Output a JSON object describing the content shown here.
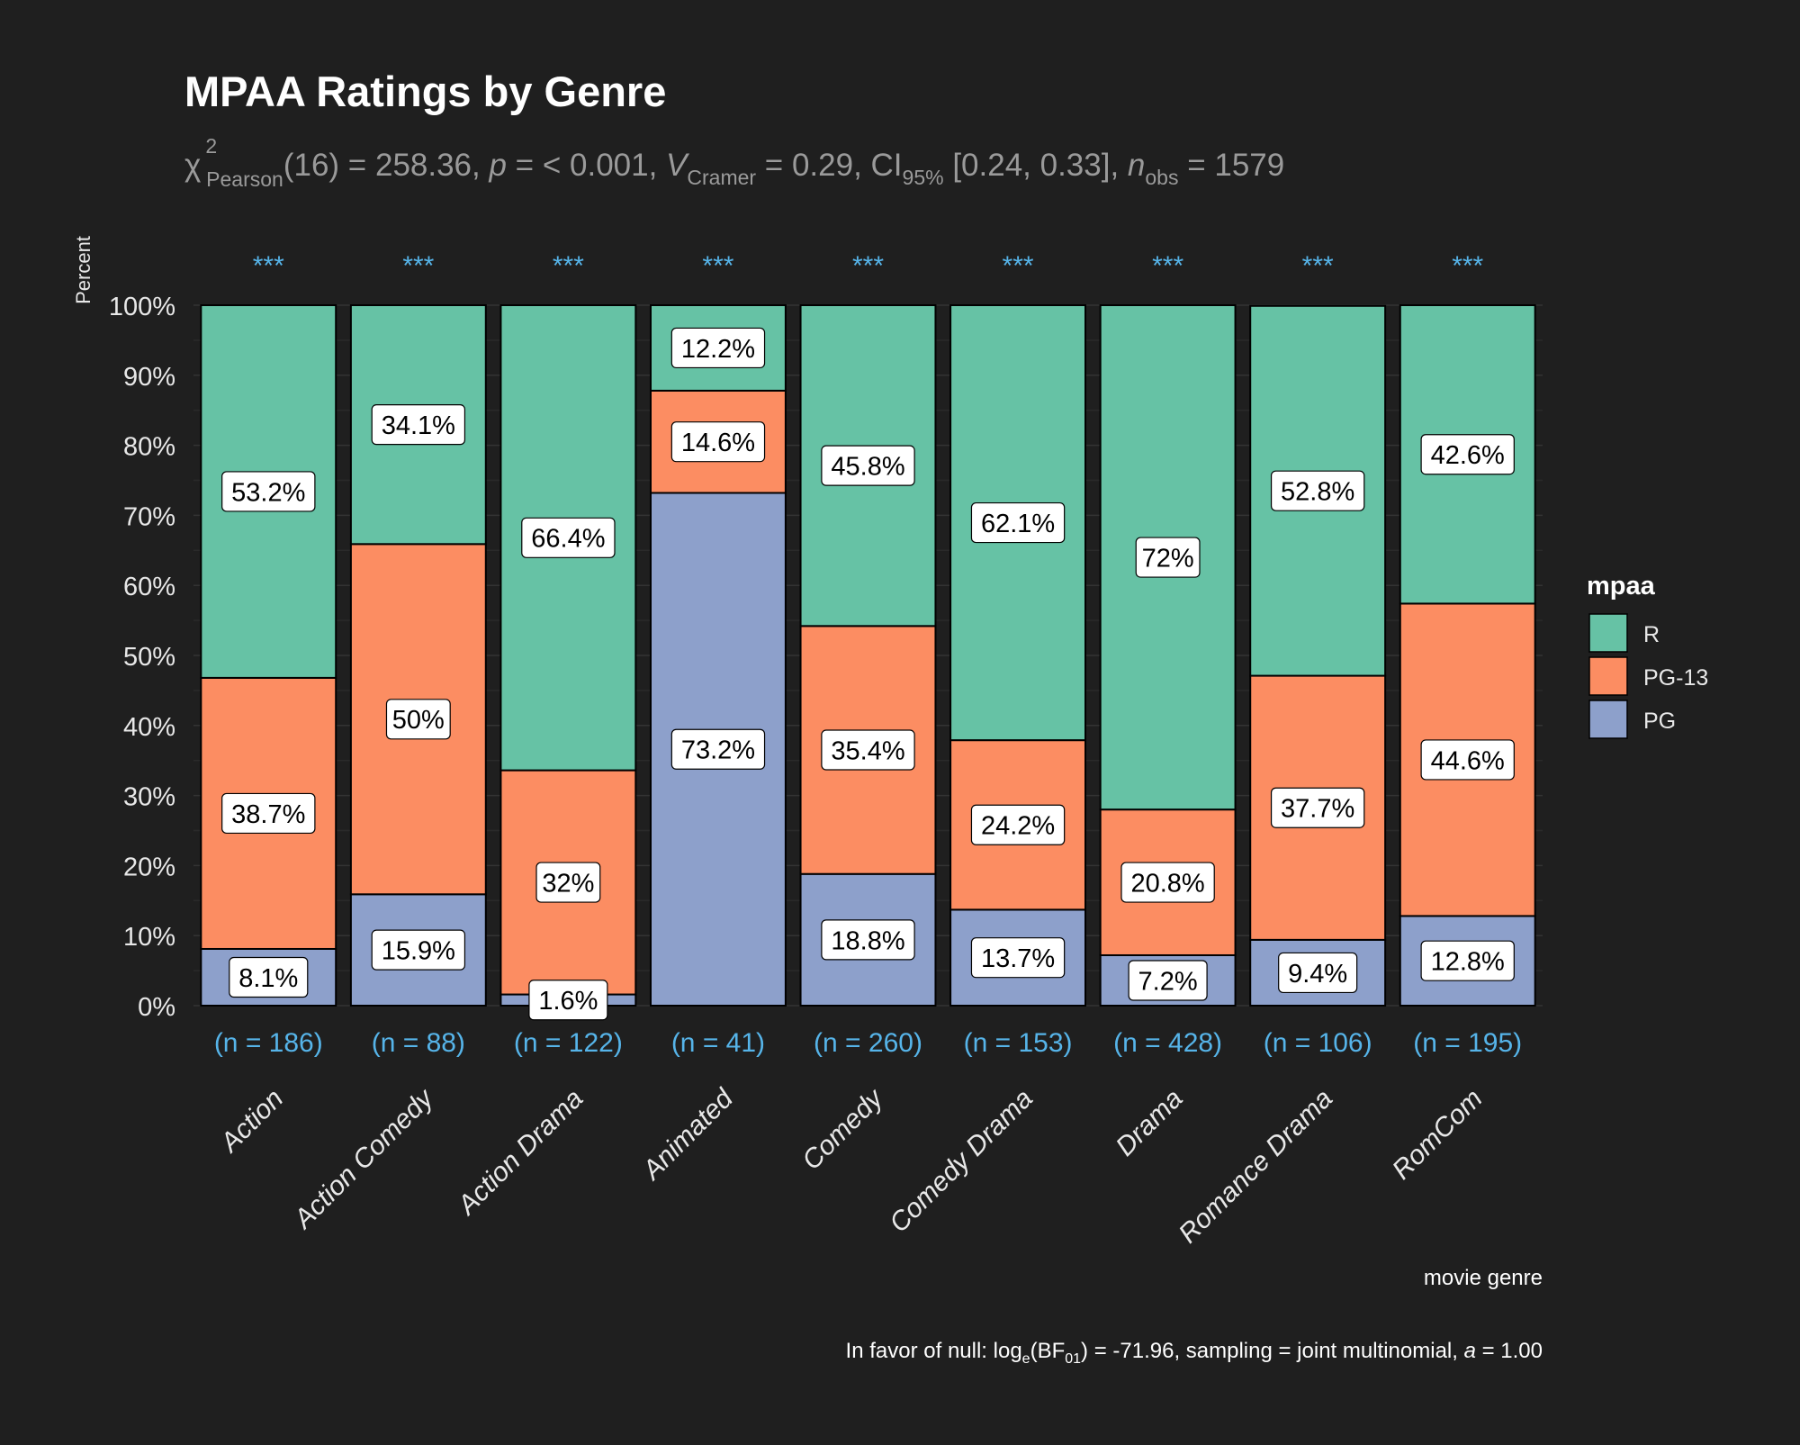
{
  "chart_data": {
    "type": "bar",
    "stacked": "percent",
    "title": "MPAA Ratings by Genre",
    "subtitle": {
      "chi": "χ",
      "chi_sup": "2",
      "chi_sub": "Pearson",
      "part1": "(16) = 258.36, ",
      "p_symbol": "p",
      "part2": " = < 0.001, ",
      "v_symbol": "V",
      "v_sub": "Cramer",
      "part3": " = 0.29, CI",
      "ci_sub": "95%",
      "part4": " [0.24, 0.33], ",
      "n_symbol": "n",
      "n_sub": "obs",
      "part5": " = 1579"
    },
    "xlabel": "movie genre",
    "ylabel": "Percent",
    "ylim": [
      0,
      100
    ],
    "y_ticks": [
      "0%",
      "10%",
      "20%",
      "30%",
      "40%",
      "50%",
      "60%",
      "70%",
      "80%",
      "90%",
      "100%"
    ],
    "categories": [
      "Action",
      "Action Comedy",
      "Action Drama",
      "Animated",
      "Comedy",
      "Comedy Drama",
      "Drama",
      "Romance Drama",
      "RomCom"
    ],
    "counts": [
      "(n = 186)",
      "(n = 88)",
      "(n = 122)",
      "(n = 41)",
      "(n = 260)",
      "(n = 153)",
      "(n = 428)",
      "(n = 106)",
      "(n = 195)"
    ],
    "significance": [
      "***",
      "***",
      "***",
      "***",
      "***",
      "***",
      "***",
      "***",
      "***"
    ],
    "series": [
      {
        "name": "PG",
        "color": "#8da0cb",
        "values": [
          8.1,
          15.9,
          1.6,
          73.2,
          18.8,
          13.7,
          7.2,
          9.4,
          12.8
        ],
        "labels": [
          "8.1%",
          "15.9%",
          "1.6%",
          "73.2%",
          "18.8%",
          "13.7%",
          "7.2%",
          "9.4%",
          "12.8%"
        ]
      },
      {
        "name": "PG-13",
        "color": "#fc8d62",
        "values": [
          38.7,
          50,
          32,
          14.6,
          35.4,
          24.2,
          20.8,
          37.7,
          44.6
        ],
        "labels": [
          "38.7%",
          "50%",
          "32%",
          "14.6%",
          "35.4%",
          "24.2%",
          "20.8%",
          "37.7%",
          "44.6%"
        ]
      },
      {
        "name": "R",
        "color": "#66c2a5",
        "values": [
          53.2,
          34.1,
          66.4,
          12.2,
          45.8,
          62.1,
          72,
          52.8,
          42.6
        ],
        "labels": [
          "53.2%",
          "34.1%",
          "66.4%",
          "12.2%",
          "45.8%",
          "62.1%",
          "72%",
          "52.8%",
          "42.6%"
        ]
      }
    ],
    "legend": {
      "title": "mpaa",
      "entries": [
        "R",
        "PG-13",
        "PG"
      ],
      "colors": [
        "#66c2a5",
        "#fc8d62",
        "#8da0cb"
      ],
      "position": "right"
    },
    "caption": {
      "prefix": "In favor of null: log",
      "log_sub": "e",
      "mid": "(BF",
      "bf_sub": "01",
      "suffix1": ") = -71.96, sampling = joint multinomial, ",
      "a_symbol": "a",
      "suffix2": " = 1.00"
    },
    "colors": {
      "background": "#1f1f1f",
      "count_text": "#56b4e9",
      "subtitle_text": "#9a9a9a",
      "axis_text": "#e8e8e8"
    }
  }
}
